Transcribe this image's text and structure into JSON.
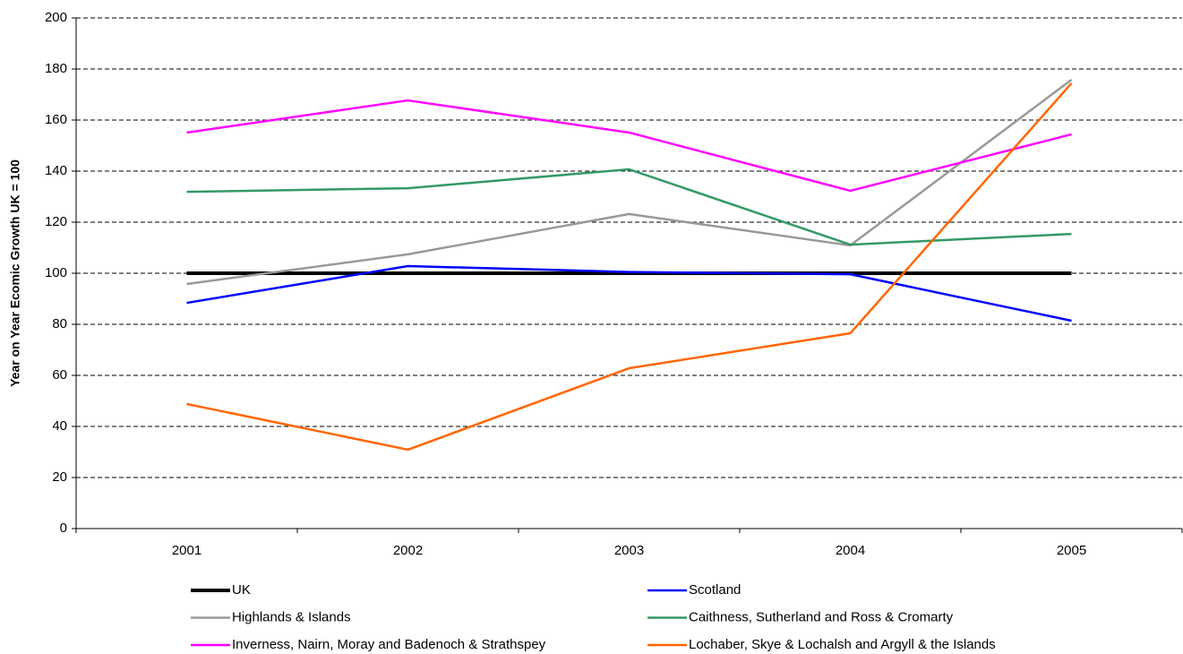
{
  "chart_data": {
    "type": "line",
    "y_label": "Year on Year Ecomic Growth UK = 100",
    "categories": [
      "2001",
      "2002",
      "2003",
      "2004",
      "2005"
    ],
    "series": [
      {
        "name": "UK",
        "color": "#000000",
        "values": [
          100,
          100,
          100,
          100,
          100
        ]
      },
      {
        "name": "Scotland",
        "color": "#0000ff",
        "values": [
          88.4,
          102.8,
          100.5,
          99.6,
          81.4
        ]
      },
      {
        "name": "Highlands & Islands",
        "color": "#999999",
        "values": [
          95.8,
          107.4,
          123.2,
          110.9,
          175.8
        ]
      },
      {
        "name": "Caithness, Sutherland and Ross & Cromarty",
        "color": "#339966",
        "values": [
          131.9,
          133.3,
          140.7,
          111.2,
          115.4
        ]
      },
      {
        "name": "Inverness, Nairn, Moray and Badenoch & Strathspey",
        "color": "#ff00ff",
        "values": [
          155.1,
          167.7,
          155.1,
          132.3,
          154.4
        ]
      },
      {
        "name": "Lochaber, Skye & Lochalsh and Argyll & the Islands",
        "color": "#ff6600",
        "values": [
          48.8,
          30.9,
          62.8,
          76.5,
          174.4
        ]
      }
    ],
    "ylim": [
      0,
      200
    ],
    "yticks": [
      0,
      20,
      40,
      60,
      80,
      100,
      120,
      140,
      160,
      180,
      200
    ],
    "grid": true,
    "legend": "bottom"
  }
}
